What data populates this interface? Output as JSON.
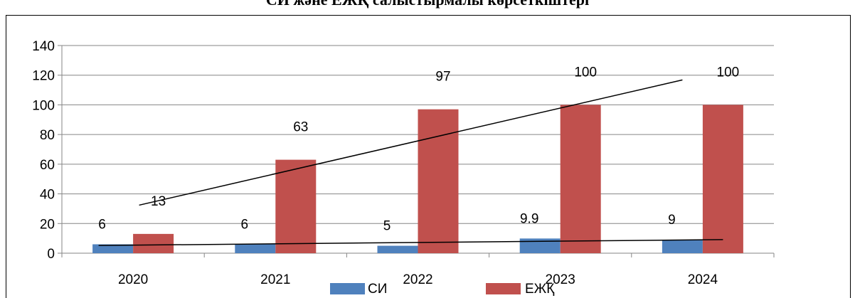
{
  "chart_data": {
    "type": "bar",
    "title": "СИ және ЕЖҚ салыстырмалы көрсеткіштері",
    "categories": [
      "2020",
      "2021",
      "2022",
      "2023",
      "2024"
    ],
    "series": [
      {
        "name": "СИ",
        "values": [
          6,
          6,
          5,
          9.9,
          9
        ],
        "labels": [
          "6",
          "6",
          "5",
          "9.9",
          "9"
        ],
        "color": "#4f81bd"
      },
      {
        "name": "ЕЖҚ",
        "values": [
          13,
          63,
          97,
          100,
          100
        ],
        "labels": [
          "13",
          "63",
          "97",
          "100",
          "100"
        ],
        "color": "#c0504d"
      }
    ],
    "ylim": [
      0,
      140
    ],
    "yticks": [
      0,
      20,
      40,
      60,
      80,
      100,
      120,
      140
    ],
    "grid": true,
    "legend": "bottom",
    "trendlines": true
  }
}
